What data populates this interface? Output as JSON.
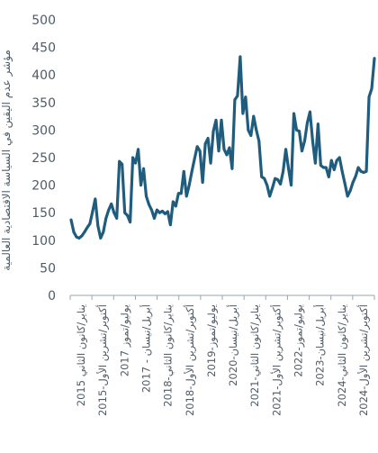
{
  "chart_data": {
    "type": "line",
    "ylabel": "مؤشر عدم اليقين في السياسة الاقتصادية العالمية",
    "xlabel": "",
    "ylim": [
      0,
      500
    ],
    "yticks": [
      0,
      50,
      100,
      150,
      200,
      250,
      300,
      350,
      400,
      450,
      500
    ],
    "xtick_labels": [
      "يناير/كانون الثاني 2015",
      "أكتوبر/تشرين الأول-2015",
      "يوليو/تموز 2017",
      "أبريل/نيسان - 2017",
      "يناير/كانون الثاني-2018",
      "أكتوبر/تشرين الأول-2018",
      "يوليو/تموز-2019",
      "أبريل/نيسان-2020",
      "يناير/كانون الثاني-2021",
      "أكتوبر/تشرين الأول-2021",
      "يوليو/تموز-2022",
      "أبريل/نيسان-2023",
      "يناير/كانون الثاني-2024",
      "أكتوبر/تشرين الأول-2024"
    ],
    "series": [
      {
        "color": "#1f5c7d",
        "values": [
          137,
          115,
          106,
          104,
          108,
          115,
          123,
          130,
          152,
          175,
          126,
          104,
          115,
          140,
          155,
          166,
          150,
          140,
          243,
          238,
          150,
          145,
          133,
          250,
          240,
          265,
          200,
          230,
          180,
          165,
          155,
          140,
          155,
          150,
          153,
          148,
          152,
          128,
          170,
          162,
          185,
          185,
          225,
          180,
          200,
          225,
          248,
          270,
          262,
          205,
          275,
          285,
          240,
          298,
          318,
          262,
          318,
          265,
          255,
          268,
          230,
          355,
          362,
          433,
          330,
          360,
          300,
          290,
          325,
          300,
          280,
          215,
          212,
          200,
          180,
          195,
          212,
          210,
          202,
          225,
          265,
          230,
          200,
          330,
          300,
          298,
          262,
          280,
          313,
          333,
          280,
          240,
          311,
          236,
          232,
          232,
          215,
          245,
          228,
          245,
          250,
          225,
          203,
          180,
          190,
          205,
          216,
          232,
          225,
          223,
          225,
          360,
          375,
          430
        ]
      }
    ]
  }
}
